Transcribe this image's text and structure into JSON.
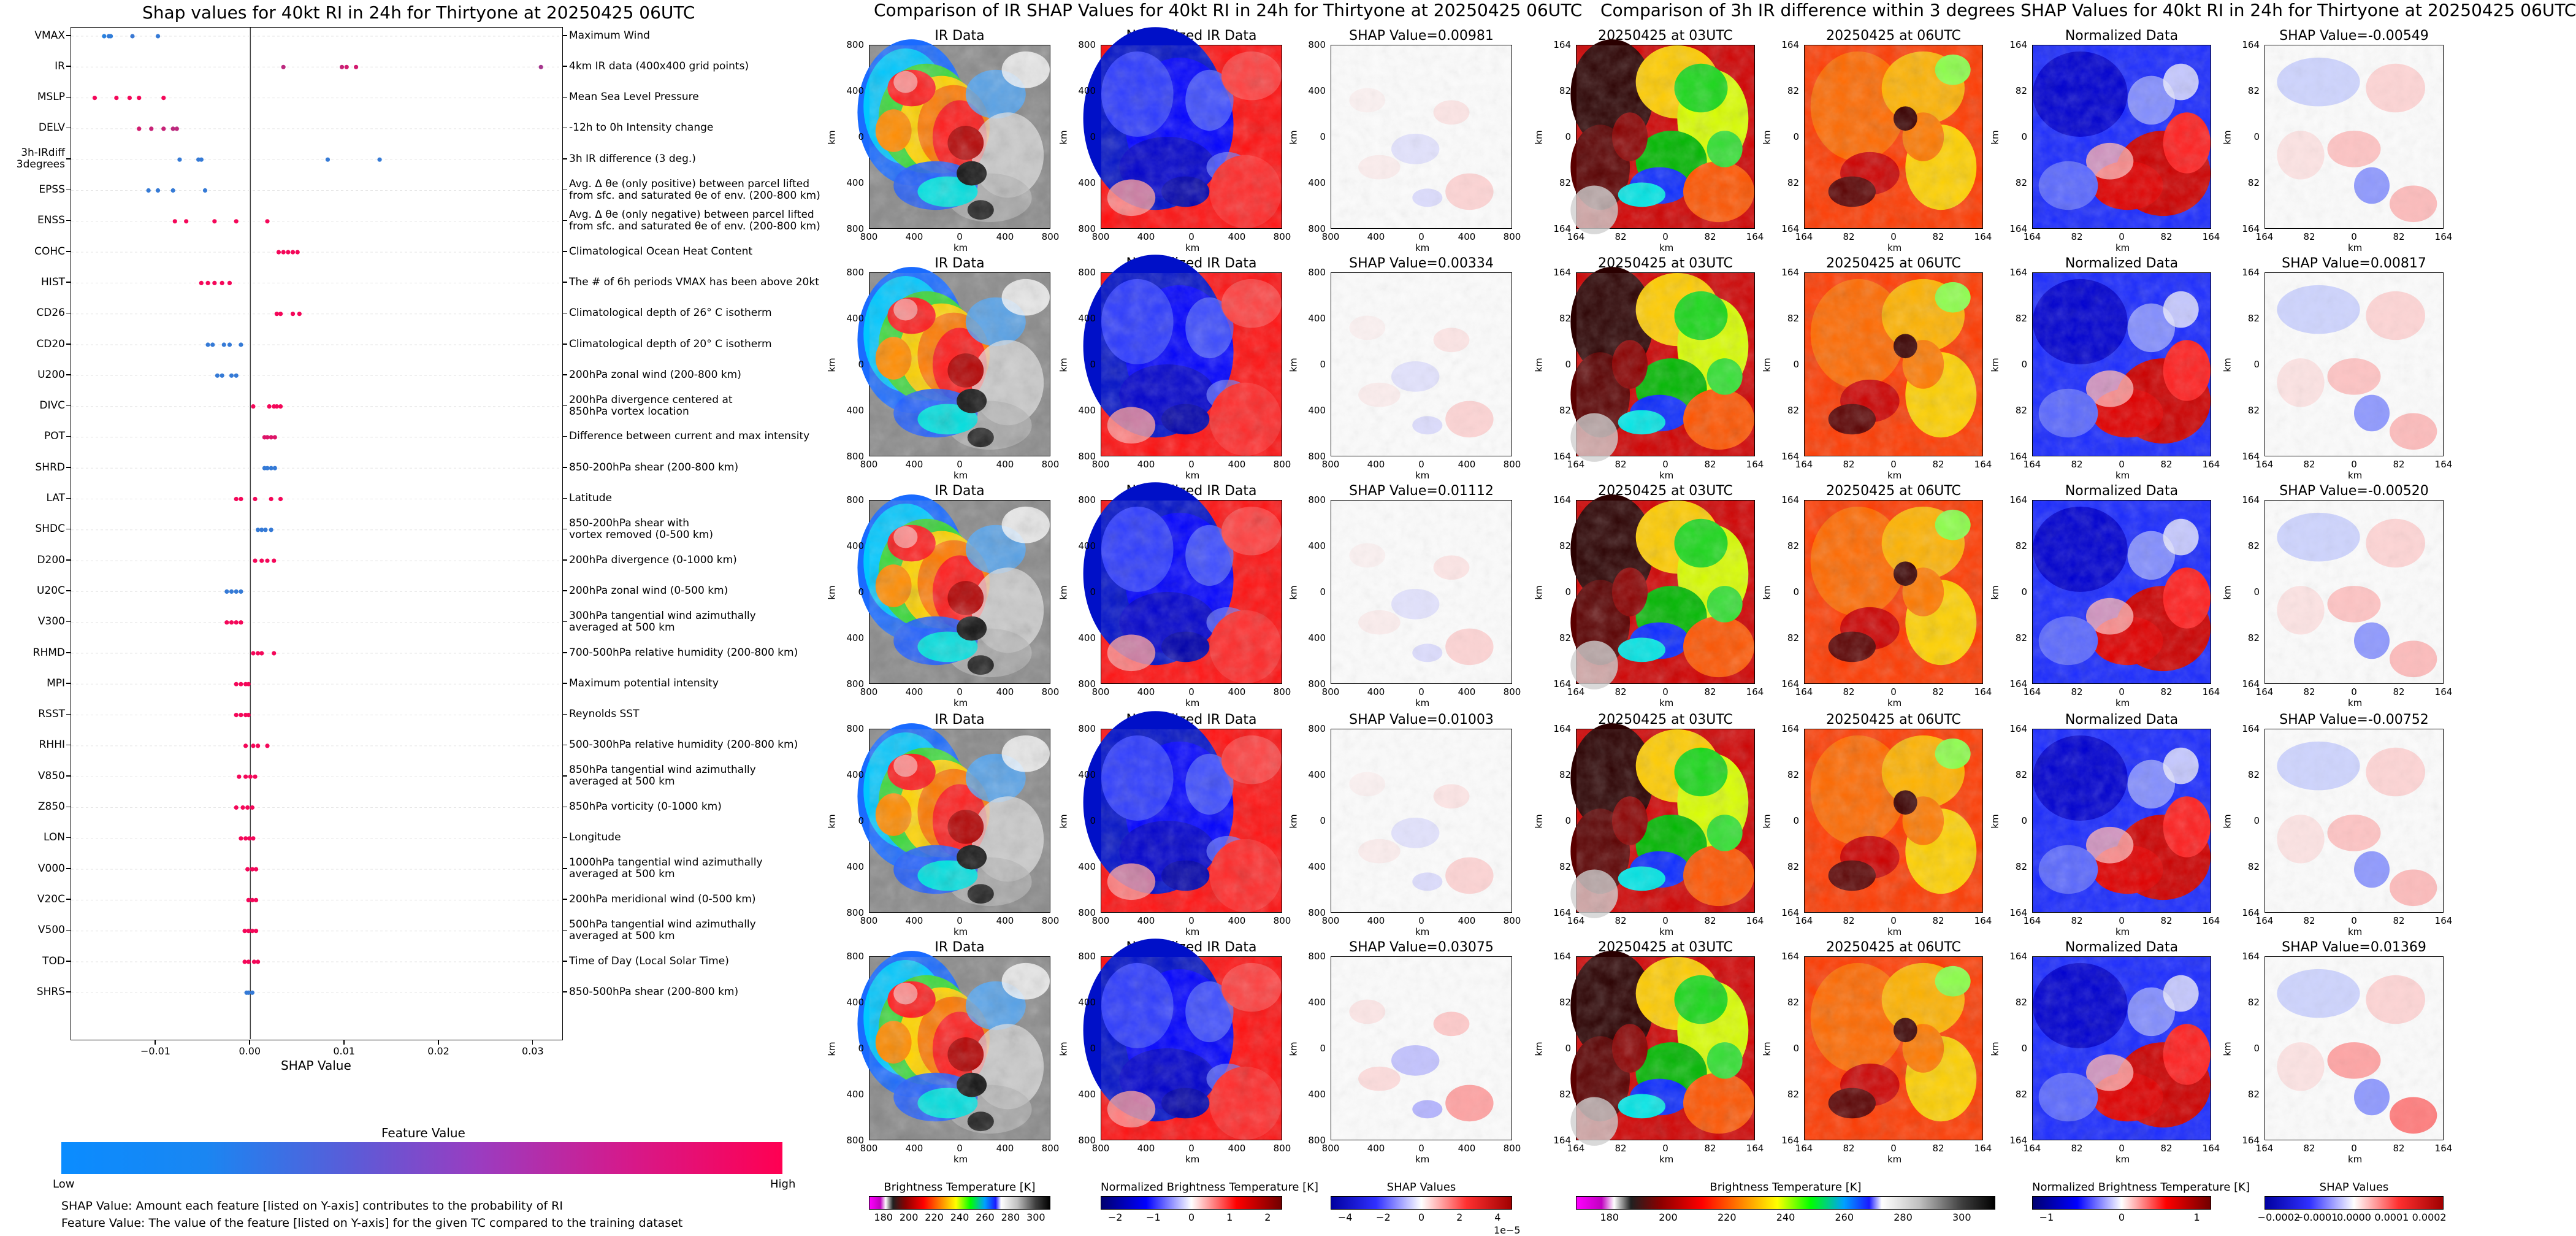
{
  "shap": {
    "title": "Shap values for 40kt RI in 24h for Thirtyone at 20250425 06UTC",
    "xlabel": "SHAP Value",
    "xticks": [
      "−0.01",
      "0.00",
      "0.01",
      "0.02",
      "0.03"
    ],
    "colorbar_title": "Feature Value",
    "low": "Low",
    "high": "High",
    "note1": "SHAP Value: Amount each feature [listed on Y-axis] contributes to the probability of RI",
    "note2": "Feature Value: The value of the feature [listed on Y-axis] for the given TC compared to the training dataset",
    "features": [
      {
        "label": "VMAX",
        "desc": "Maximum Wind"
      },
      {
        "label": "IR",
        "desc": "4km IR data (400x400 grid points)"
      },
      {
        "label": "MSLP",
        "desc": "Mean Sea Level Pressure"
      },
      {
        "label": "DELV",
        "desc": "-12h to 0h Intensity change"
      },
      {
        "label": "3h-IRdiff\n3degrees",
        "desc": "3h IR difference (3 deg.)"
      },
      {
        "label": "EPSS",
        "desc": "Avg. Δ θe (only positive) between parcel lifted\nfrom sfc. and saturated θe of env. (200-800 km)"
      },
      {
        "label": "ENSS",
        "desc": "Avg. Δ θe (only negative) between parcel lifted\nfrom sfc. and saturated θe of env. (200-800 km)"
      },
      {
        "label": "COHC",
        "desc": "Climatological Ocean Heat Content"
      },
      {
        "label": "HIST",
        "desc": "The # of 6h periods VMAX has been above 20kt"
      },
      {
        "label": "CD26",
        "desc": "Climatological depth of 26° C isotherm"
      },
      {
        "label": "CD20",
        "desc": "Climatological depth of 20° C isotherm"
      },
      {
        "label": "U200",
        "desc": "200hPa zonal wind (200-800 km)"
      },
      {
        "label": "DIVC",
        "desc": "200hPa divergence centered at\n850hPa vortex location"
      },
      {
        "label": "POT",
        "desc": "Difference between current and max intensity"
      },
      {
        "label": "SHRD",
        "desc": "850-200hPa shear (200-800 km)"
      },
      {
        "label": "LAT",
        "desc": "Latitude"
      },
      {
        "label": "SHDC",
        "desc": "850-200hPa shear with\nvortex removed (0-500 km)"
      },
      {
        "label": "D200",
        "desc": "200hPa divergence (0-1000 km)"
      },
      {
        "label": "U20C",
        "desc": "200hPa zonal wind (0-500 km)"
      },
      {
        "label": "V300",
        "desc": "300hPa tangential wind azimuthally\naveraged at 500 km"
      },
      {
        "label": "RHMD",
        "desc": "700-500hPa relative humidity (200-800 km)"
      },
      {
        "label": "MPI",
        "desc": "Maximum potential intensity"
      },
      {
        "label": "RSST",
        "desc": "Reynolds SST"
      },
      {
        "label": "RHHI",
        "desc": "500-300hPa relative humidity (200-800 km)"
      },
      {
        "label": "V850",
        "desc": "850hPa tangential wind azimuthally\naveraged at 500 km"
      },
      {
        "label": "Z850",
        "desc": "850hPa vorticity (0-1000 km)"
      },
      {
        "label": "LON",
        "desc": "Longitude"
      },
      {
        "label": "V000",
        "desc": "1000hPa tangential wind azimuthally\naveraged at 500 km"
      },
      {
        "label": "V20C",
        "desc": "200hPa meridional wind (0-500 km)"
      },
      {
        "label": "V500",
        "desc": "500hPa tangential wind azimuthally\naveraged at 500 km"
      },
      {
        "label": "TOD",
        "desc": "Time of Day (Local Solar Time)"
      },
      {
        "label": "SHRS",
        "desc": "850-500hPa shear (200-800 km)"
      }
    ]
  },
  "ir": {
    "title": "Comparison of IR SHAP Values for 40kt RI in 24h for Thirtyone at 20250425 06UTC",
    "col_titles": [
      "IR Data",
      "Normalized IR Data"
    ],
    "shap_titles": [
      "SHAP Value=0.00981",
      "SHAP Value=0.00334",
      "SHAP Value=0.01112",
      "SHAP Value=0.01003",
      "SHAP Value=0.03075"
    ],
    "ticks": [
      "800",
      "400",
      "0",
      "400",
      "800"
    ],
    "unit": "km",
    "cb1": {
      "label": "Brightness Temperature [K]",
      "ticks": [
        "180",
        "200",
        "220",
        "240",
        "260",
        "280",
        "300"
      ]
    },
    "cb2": {
      "label": "Normalized Brightness Temperature [K]",
      "ticks": [
        "−2",
        "−1",
        "0",
        "1",
        "2"
      ]
    },
    "cb3": {
      "label": "SHAP Values",
      "ticks": [
        "−4",
        "−2",
        "0",
        "2",
        "4"
      ],
      "exp": "1e−5"
    }
  },
  "diff": {
    "title": "Comparison of 3h IR difference within 3 degrees SHAP Values for 40kt RI in 24h for Thirtyone at 20250425 06UTC",
    "col_titles": [
      "20250425 at 03UTC",
      "20250425 at 06UTC",
      "Normalized Data"
    ],
    "shap_titles": [
      "SHAP Value=-0.00549",
      "SHAP Value=0.00817",
      "SHAP Value=-0.00520",
      "SHAP Value=-0.00752",
      "SHAP Value=0.01369"
    ],
    "ticks": [
      "164",
      "82",
      "0",
      "82",
      "164"
    ],
    "unit": "km",
    "cb1": {
      "label": "Brightness Temperature [K]",
      "ticks": [
        "180",
        "200",
        "220",
        "240",
        "260",
        "280",
        "300"
      ]
    },
    "cb2": {
      "label": "Normalized Brightness Temperature [K]",
      "ticks": [
        "−1",
        "0",
        "1"
      ]
    },
    "cb3": {
      "label": "SHAP Values",
      "ticks": [
        "−0.0002",
        "−0.0001",
        "0.0000",
        "0.0001",
        "0.0002"
      ]
    }
  },
  "chart_data": [
    {
      "type": "scatter",
      "title": "Shap values for 40kt RI in 24h for Thirtyone at 20250425 06UTC",
      "xlabel": "SHAP Value",
      "xlim": [
        -0.019,
        0.033
      ],
      "color_low": "#1e88e5",
      "color_high": "#ff0052",
      "rows": [
        {
          "feature": "VMAX",
          "points": [
            [
              -0.0155,
              0.05
            ],
            [
              -0.015,
              0.1
            ],
            [
              -0.0148,
              0.08
            ],
            [
              -0.0125,
              0.12
            ],
            [
              -0.0098,
              0.1
            ]
          ]
        },
        {
          "feature": "IR",
          "points": [
            [
              0.0035,
              0.7
            ],
            [
              0.0097,
              0.75
            ],
            [
              0.0102,
              0.8
            ],
            [
              0.0112,
              0.8
            ],
            [
              0.0308,
              0.6
            ]
          ]
        },
        {
          "feature": "MSLP",
          "points": [
            [
              -0.0165,
              0.95
            ],
            [
              -0.0142,
              0.95
            ],
            [
              -0.0128,
              0.95
            ],
            [
              -0.0118,
              0.95
            ],
            [
              -0.0092,
              0.95
            ]
          ]
        },
        {
          "feature": "DELV",
          "points": [
            [
              -0.0118,
              0.8
            ],
            [
              -0.0105,
              0.75
            ],
            [
              -0.0092,
              0.75
            ],
            [
              -0.0082,
              0.7
            ],
            [
              -0.0078,
              0.7
            ]
          ]
        },
        {
          "feature": "3h-IRdiff 3degrees",
          "points": [
            [
              -0.0075,
              0.1
            ],
            [
              -0.0055,
              0.1
            ],
            [
              -0.0052,
              0.1
            ],
            [
              0.0082,
              0.1
            ],
            [
              0.0137,
              0.1
            ]
          ]
        },
        {
          "feature": "EPSS",
          "points": [
            [
              -0.0108,
              0.1
            ],
            [
              -0.0098,
              0.1
            ],
            [
              -0.0082,
              0.1
            ],
            [
              -0.0048,
              0.1
            ]
          ]
        },
        {
          "feature": "ENSS",
          "points": [
            [
              -0.008,
              0.95
            ],
            [
              -0.0068,
              0.95
            ],
            [
              -0.0038,
              0.95
            ],
            [
              -0.0015,
              0.95
            ],
            [
              0.0018,
              0.95
            ]
          ]
        },
        {
          "feature": "COHC",
          "points": [
            [
              0.003,
              0.95
            ],
            [
              0.0035,
              0.95
            ],
            [
              0.004,
              0.95
            ],
            [
              0.0045,
              0.95
            ],
            [
              0.005,
              0.95
            ]
          ]
        },
        {
          "feature": "HIST",
          "points": [
            [
              -0.0052,
              0.95
            ],
            [
              -0.0045,
              0.95
            ],
            [
              -0.0038,
              0.95
            ],
            [
              -0.003,
              0.95
            ],
            [
              -0.0022,
              0.95
            ]
          ]
        },
        {
          "feature": "CD26",
          "points": [
            [
              0.0028,
              0.95
            ],
            [
              0.0032,
              0.95
            ],
            [
              0.0045,
              0.95
            ],
            [
              0.0052,
              0.95
            ]
          ]
        },
        {
          "feature": "CD20",
          "points": [
            [
              -0.0045,
              0.1
            ],
            [
              -0.004,
              0.1
            ],
            [
              -0.0028,
              0.1
            ],
            [
              -0.0022,
              0.1
            ],
            [
              -0.001,
              0.1
            ]
          ]
        },
        {
          "feature": "U200",
          "points": [
            [
              -0.0035,
              0.1
            ],
            [
              -0.003,
              0.1
            ],
            [
              -0.002,
              0.1
            ],
            [
              -0.0015,
              0.1
            ]
          ]
        },
        {
          "feature": "DIVC",
          "points": [
            [
              0.0003,
              0.95
            ],
            [
              0.002,
              0.95
            ],
            [
              0.0025,
              0.95
            ],
            [
              0.0028,
              0.95
            ],
            [
              0.0032,
              0.95
            ]
          ]
        },
        {
          "feature": "POT",
          "points": [
            [
              0.0015,
              0.85
            ],
            [
              0.0018,
              0.85
            ],
            [
              0.0022,
              0.85
            ],
            [
              0.0026,
              0.85
            ]
          ]
        },
        {
          "feature": "SHRD",
          "points": [
            [
              0.0015,
              0.1
            ],
            [
              0.0018,
              0.1
            ],
            [
              0.0022,
              0.1
            ],
            [
              0.0026,
              0.1
            ]
          ]
        },
        {
          "feature": "LAT",
          "points": [
            [
              -0.0015,
              0.95
            ],
            [
              -0.001,
              0.95
            ],
            [
              0.0005,
              0.95
            ],
            [
              0.0022,
              0.95
            ],
            [
              0.0032,
              0.95
            ]
          ]
        },
        {
          "feature": "SHDC",
          "points": [
            [
              0.0008,
              0.1
            ],
            [
              0.0012,
              0.1
            ],
            [
              0.0016,
              0.1
            ],
            [
              0.0022,
              0.1
            ]
          ]
        },
        {
          "feature": "D200",
          "points": [
            [
              0.0005,
              0.95
            ],
            [
              0.0012,
              0.95
            ],
            [
              0.0018,
              0.95
            ],
            [
              0.0025,
              0.95
            ]
          ]
        },
        {
          "feature": "U20C",
          "points": [
            [
              -0.0025,
              0.1
            ],
            [
              -0.002,
              0.1
            ],
            [
              -0.0015,
              0.1
            ],
            [
              -0.001,
              0.1
            ]
          ]
        },
        {
          "feature": "V300",
          "points": [
            [
              -0.0025,
              0.95
            ],
            [
              -0.002,
              0.95
            ],
            [
              -0.0015,
              0.95
            ],
            [
              -0.001,
              0.95
            ]
          ]
        },
        {
          "feature": "RHMD",
          "points": [
            [
              0.0003,
              0.95
            ],
            [
              0.0008,
              0.95
            ],
            [
              0.0012,
              0.95
            ],
            [
              0.0025,
              0.95
            ]
          ]
        },
        {
          "feature": "MPI",
          "points": [
            [
              -0.0015,
              0.95
            ],
            [
              -0.001,
              0.95
            ],
            [
              -0.0005,
              0.95
            ],
            [
              -0.0002,
              0.95
            ]
          ]
        },
        {
          "feature": "RSST",
          "points": [
            [
              -0.0015,
              0.95
            ],
            [
              -0.001,
              0.95
            ],
            [
              -0.0005,
              0.95
            ],
            [
              -0.0002,
              0.95
            ]
          ]
        },
        {
          "feature": "RHHI",
          "points": [
            [
              -0.0005,
              0.95
            ],
            [
              0.0003,
              0.95
            ],
            [
              0.0008,
              0.95
            ],
            [
              0.0018,
              0.95
            ]
          ]
        },
        {
          "feature": "V850",
          "points": [
            [
              -0.0012,
              0.95
            ],
            [
              -0.0005,
              0.95
            ],
            [
              0.0,
              0.95
            ],
            [
              0.0005,
              0.95
            ]
          ]
        },
        {
          "feature": "Z850",
          "points": [
            [
              -0.0015,
              0.95
            ],
            [
              -0.0008,
              0.95
            ],
            [
              -0.0003,
              0.95
            ],
            [
              0.0002,
              0.95
            ]
          ]
        },
        {
          "feature": "LON",
          "points": [
            [
              -0.001,
              0.95
            ],
            [
              -0.0005,
              0.95
            ],
            [
              -0.0001,
              0.95
            ],
            [
              0.0003,
              0.95
            ]
          ]
        },
        {
          "feature": "V000",
          "points": [
            [
              -0.0003,
              0.95
            ],
            [
              0.0002,
              0.95
            ],
            [
              0.0006,
              0.95
            ]
          ]
        },
        {
          "feature": "V20C",
          "points": [
            [
              -0.0002,
              0.95
            ],
            [
              0.0002,
              0.95
            ],
            [
              0.0006,
              0.95
            ]
          ]
        },
        {
          "feature": "V500",
          "points": [
            [
              -0.0006,
              0.95
            ],
            [
              -0.0002,
              0.95
            ],
            [
              0.0002,
              0.95
            ],
            [
              0.0006,
              0.95
            ]
          ]
        },
        {
          "feature": "TOD",
          "points": [
            [
              -0.0006,
              0.95
            ],
            [
              -0.0002,
              0.95
            ],
            [
              0.0004,
              0.95
            ],
            [
              0.0008,
              0.95
            ]
          ]
        },
        {
          "feature": "SHRS",
          "points": [
            [
              -0.0004,
              0.1
            ],
            [
              -0.0002,
              0.1
            ],
            [
              0.0002,
              0.1
            ]
          ]
        }
      ]
    },
    {
      "type": "heatmap",
      "title": "Comparison of IR SHAP Values for 40kt RI in 24h for Thirtyone at 20250425 06UTC",
      "shap_values": [
        0.00981,
        0.00334,
        0.01112,
        0.01003,
        0.03075
      ]
    },
    {
      "type": "heatmap",
      "title": "Comparison of 3h IR difference within 3 degrees SHAP Values for 40kt RI in 24h for Thirtyone at 20250425 06UTC",
      "shap_values": [
        -0.00549,
        0.00817,
        -0.0052,
        -0.00752,
        0.01369
      ]
    }
  ]
}
